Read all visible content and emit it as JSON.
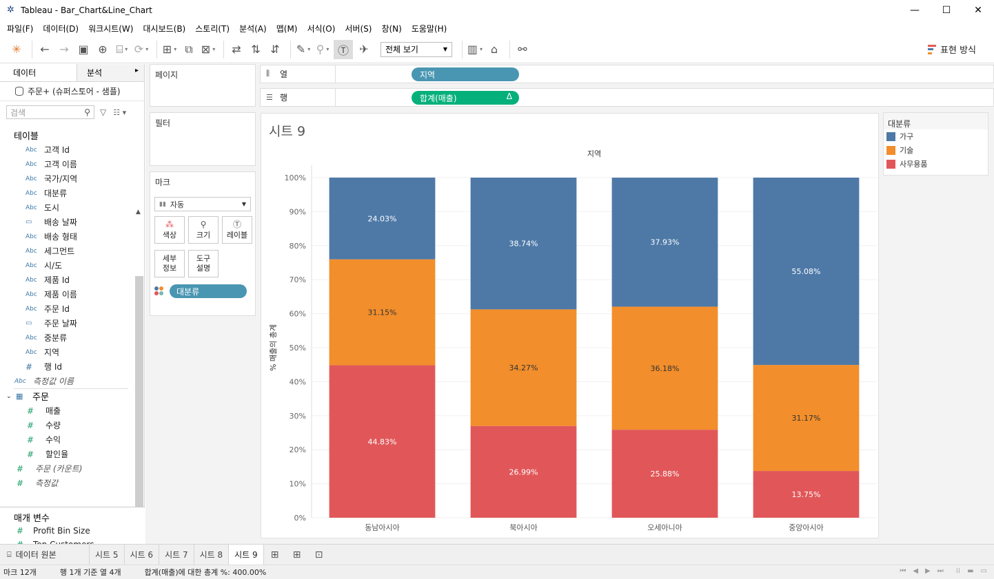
{
  "window": {
    "title": "Tableau - Bar_Chart&Line_Chart",
    "app_icon": "tableau-logo-icon",
    "controls": {
      "minimize": "—",
      "maximize": "☐",
      "close": "✕"
    }
  },
  "menu": [
    "파일(F)",
    "데이터(D)",
    "워크시트(W)",
    "대시보드(B)",
    "스토리(T)",
    "분석(A)",
    "맵(M)",
    "서식(O)",
    "서버(S)",
    "창(N)",
    "도움말(H)"
  ],
  "toolbar": {
    "fit_select": "전체 보기",
    "show_me": "표현 방식"
  },
  "left_pane": {
    "tabs": {
      "data": "데이터",
      "analysis": "분석"
    },
    "datasource": "주문+ (슈퍼스토어 - 샘플)",
    "search_placeholder": "검색",
    "tables_header": "테이블",
    "dimensions": [
      {
        "type": "Abc",
        "name": "고객 Id"
      },
      {
        "type": "Abc",
        "name": "고객 이름"
      },
      {
        "type": "Abc",
        "name": "국가/지역"
      },
      {
        "type": "Abc",
        "name": "대분류"
      },
      {
        "type": "Abc",
        "name": "도시"
      },
      {
        "type": "date",
        "name": "배송 날짜"
      },
      {
        "type": "Abc",
        "name": "배송 형태"
      },
      {
        "type": "Abc",
        "name": "세그먼트"
      },
      {
        "type": "Abc",
        "name": "시/도"
      },
      {
        "type": "Abc",
        "name": "제품 Id"
      },
      {
        "type": "Abc",
        "name": "제품 이름"
      },
      {
        "type": "Abc",
        "name": "주문 Id"
      },
      {
        "type": "date",
        "name": "주문 날짜"
      },
      {
        "type": "Abc",
        "name": "중분류"
      },
      {
        "type": "Abc",
        "name": "지역"
      },
      {
        "type": "#",
        "name": "행 Id"
      }
    ],
    "measure_names": "측정값 이름",
    "measure_table": "주문",
    "measures": [
      "매출",
      "수량",
      "수익",
      "할인율"
    ],
    "extra_measures": [
      "주문 (카운트)",
      "측정값"
    ],
    "params_header": "매개 변수",
    "params": [
      "Profit Bin Size",
      "Top Customers"
    ]
  },
  "cards": {
    "pages": "페이지",
    "filters": "필터",
    "marks": "마크",
    "marks_type": "자동",
    "buttons": {
      "color": "색상",
      "size": "크기",
      "label": "레이블",
      "detail_1": "세부",
      "detail_2": "정보",
      "tooltip_1": "도구",
      "tooltip_2": "설명"
    },
    "color_pill": "대분류"
  },
  "shelves": {
    "columns_label": "열",
    "columns_pill": "지역",
    "rows_label": "행",
    "rows_pill": "합계(매출)",
    "rows_pill_delta": "Δ"
  },
  "sheet": {
    "title": "시트 9"
  },
  "legend": {
    "title": "대분류",
    "items": [
      {
        "name": "가구",
        "color": "#4e79a7"
      },
      {
        "name": "기술",
        "color": "#f28e2b"
      },
      {
        "name": "사무용품",
        "color": "#e15759"
      }
    ]
  },
  "chart_data": {
    "type": "bar",
    "stacked": true,
    "header": "지역",
    "ylabel": "% 매출의 총계",
    "ylim": [
      0,
      100
    ],
    "yticks": [
      "0%",
      "10%",
      "20%",
      "30%",
      "40%",
      "50%",
      "60%",
      "70%",
      "80%",
      "90%",
      "100%"
    ],
    "categories": [
      "동남아시아",
      "북아시아",
      "오세아니아",
      "중앙아시아"
    ],
    "series": [
      {
        "name": "사무용품",
        "color": "#e15759",
        "values": [
          44.83,
          26.99,
          25.88,
          13.75
        ],
        "labels": [
          "44.83%",
          "26.99%",
          "25.88%",
          "13.75%"
        ],
        "label_color": "#ffffff"
      },
      {
        "name": "기술",
        "color": "#f28e2b",
        "values": [
          31.15,
          34.27,
          36.18,
          31.17
        ],
        "labels": [
          "31.15%",
          "34.27%",
          "36.18%",
          "31.17%"
        ],
        "label_color": "#333333"
      },
      {
        "name": "가구",
        "color": "#4e79a7",
        "values": [
          24.03,
          38.74,
          37.93,
          55.08
        ],
        "labels": [
          "24.03%",
          "38.74%",
          "37.93%",
          "55.08%"
        ],
        "label_color": "#ffffff"
      }
    ]
  },
  "sheet_tabs": {
    "datasource": "데이터 원본",
    "tabs": [
      "시트 5",
      "시트 6",
      "시트 7",
      "시트 8",
      "시트 9"
    ],
    "active": "시트 9"
  },
  "status": {
    "marks": "마크 12개",
    "rows_cols": "행 1개 기준 열 4개",
    "sum": "합계(매출)에 대한 총계 %: 400.00%"
  }
}
